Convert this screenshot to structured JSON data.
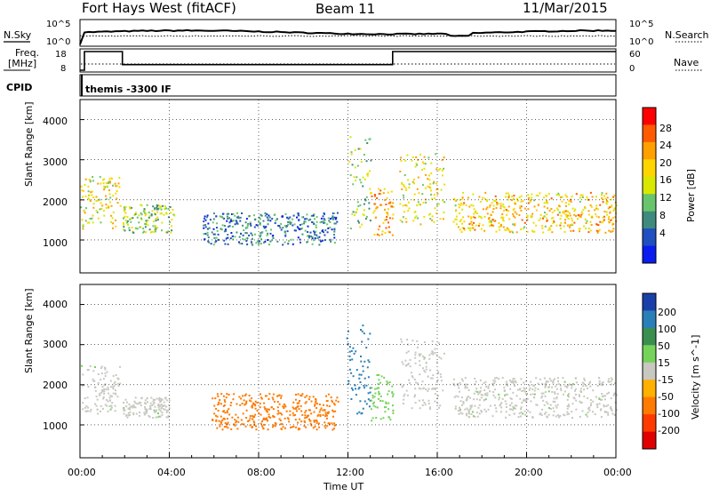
{
  "header": {
    "title": "Fort Hays West (fitACF)",
    "beam": "Beam 11",
    "date": "11/Mar/2015"
  },
  "top_panels": {
    "nsky_label": "N.Sky",
    "nsearch_label": "N.Search",
    "freq_label_1": "Freq.",
    "freq_label_2": "[MHz]",
    "nave_label": "Nave",
    "cpid_label": "CPID",
    "cpid_name": "themis -3300 IF",
    "noise_left_ticks": [
      "10^5",
      "10^0"
    ],
    "noise_right_ticks": [
      "10^5",
      "10^0"
    ],
    "freq_left_ticks": [
      "18",
      "8"
    ],
    "freq_right_ticks": [
      "60",
      "0"
    ]
  },
  "panels": {
    "y_label": "Slant Range [km]",
    "y_ticks": [
      "4000",
      "3000",
      "2000",
      "1000"
    ],
    "x_label": "Time UT",
    "x_ticks": [
      "00:00",
      "04:00",
      "08:00",
      "12:00",
      "16:00",
      "20:00",
      "00:00"
    ]
  },
  "power_colorbar": {
    "label": "Power [dB]",
    "ticks": [
      "28",
      "24",
      "20",
      "16",
      "12",
      "8",
      "4"
    ],
    "colors": [
      "#ff0000",
      "#ff5a00",
      "#ff9f00",
      "#ffd500",
      "#d8e800",
      "#69c56b",
      "#3e8b7e",
      "#1f4fc0",
      "#0a1cf0"
    ]
  },
  "velocity_colorbar": {
    "label": "Velocity [m s^-1]",
    "ticks": [
      "200",
      "100",
      "50",
      "15",
      "-15",
      "-50",
      "-100",
      "-200"
    ],
    "colors": [
      "#1a3fa8",
      "#2a7fb8",
      "#3a8f50",
      "#76d35a",
      "#c8c8c0",
      "#ffb000",
      "#ff7a00",
      "#ff3a00",
      "#e00000"
    ]
  },
  "chart_data": {
    "type": "heatmap",
    "title": "Fort Hays West (fitACF)",
    "xlabel": "Time UT",
    "ylabel": "Slant Range [km]",
    "xlim": [
      0,
      24
    ],
    "ylim": [
      180,
      4500
    ],
    "freq_segments_MHz": [
      {
        "start": 0,
        "end": 0.2,
        "value": 8
      },
      {
        "start": 0.2,
        "end": 1.9,
        "value": 18
      },
      {
        "start": 1.9,
        "end": 14.0,
        "value": 11
      },
      {
        "start": 14.0,
        "end": 24,
        "value": 18
      }
    ],
    "power_clusters": [
      {
        "t0": 0.0,
        "t1": 1.8,
        "r0": 1300,
        "r1": 2600,
        "center_db": 16
      },
      {
        "t0": 1.9,
        "t1": 4.2,
        "r0": 1200,
        "r1": 1900,
        "center_db": 12
      },
      {
        "t0": 5.5,
        "t1": 11.5,
        "r0": 900,
        "r1": 1700,
        "center_db": 6
      },
      {
        "t0": 12.0,
        "t1": 13.0,
        "r0": 1300,
        "r1": 3600,
        "center_db": 12
      },
      {
        "t0": 13.0,
        "t1": 14.0,
        "r0": 1100,
        "r1": 2300,
        "center_db": 20
      },
      {
        "t0": 14.3,
        "t1": 16.3,
        "r0": 1400,
        "r1": 3200,
        "center_db": 16
      },
      {
        "t0": 16.7,
        "t1": 24.0,
        "r0": 1200,
        "r1": 2200,
        "center_db": 18
      }
    ],
    "velocity_clusters": [
      {
        "t0": 0.0,
        "t1": 1.8,
        "r0": 1300,
        "r1": 2500,
        "velocity": 0
      },
      {
        "t0": 1.9,
        "t1": 4.0,
        "r0": 1200,
        "r1": 1700,
        "velocity": 0
      },
      {
        "t0": 5.8,
        "t1": 11.6,
        "r0": 900,
        "r1": 1800,
        "velocity": -70
      },
      {
        "t0": 11.9,
        "t1": 13.0,
        "r0": 1300,
        "r1": 3500,
        "velocity": 150
      },
      {
        "t0": 13.0,
        "t1": 14.0,
        "r0": 1100,
        "r1": 2300,
        "velocity": 30
      },
      {
        "t0": 14.3,
        "t1": 16.3,
        "r0": 1400,
        "r1": 3200,
        "velocity": 0
      },
      {
        "t0": 16.7,
        "t1": 24.0,
        "r0": 1200,
        "r1": 2200,
        "velocity": 0
      }
    ]
  }
}
